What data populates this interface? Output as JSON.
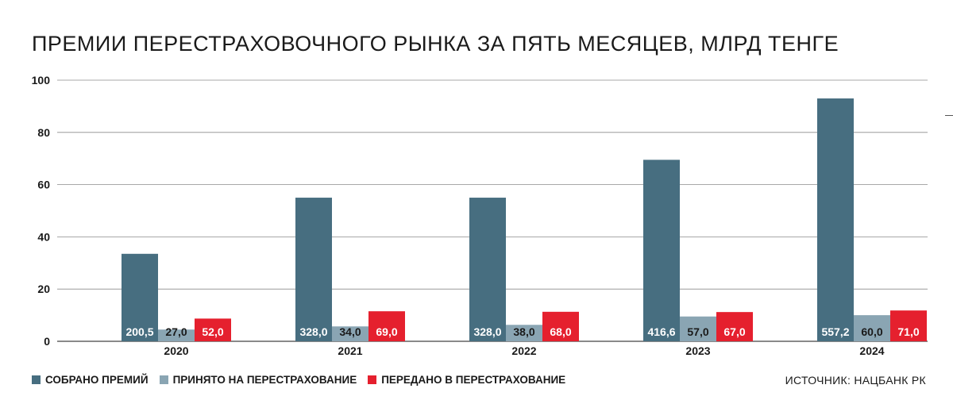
{
  "title": "ПРЕМИИ ПЕРЕСТРАХОВОЧНОГО РЫНКА ЗА ПЯТЬ МЕСЯЦЕВ, МЛРД ТЕНГЕ",
  "source": "ИСТОЧНИК: НАЦБАНК РК",
  "colors": {
    "collected": "#476e80",
    "accepted": "#8aa5b3",
    "ceded": "#e5202e"
  },
  "legend": [
    {
      "label": "СОБРАНО ПРЕМИЙ",
      "color": "#476e80"
    },
    {
      "label": "ПРИНЯТО НА ПЕРЕСТРАХОВАНИЕ",
      "color": "#8aa5b3"
    },
    {
      "label": "ПЕРЕДАНО В ПЕРЕСТРАХОВАНИЕ",
      "color": "#e5202e"
    }
  ],
  "chart_data": {
    "type": "bar",
    "title": "ПРЕМИИ ПЕРЕСТРАХОВОЧНОГО РЫНКА ЗА ПЯТЬ МЕСЯЦЕВ, МЛРД ТЕНГЕ",
    "categories": [
      "2020",
      "2021",
      "2022",
      "2023",
      "2024"
    ],
    "ylim": [
      0,
      100
    ],
    "yticks": [
      0,
      20,
      40,
      60,
      80,
      100
    ],
    "grid": true,
    "legend_position": "bottom-left",
    "series": [
      {
        "name": "СОБРАНО ПРЕМИЙ",
        "values": [
          33.5,
          55,
          55,
          69.5,
          93
        ],
        "labels": [
          "200,5",
          "328,0",
          "328,0",
          "416,6",
          "557,2"
        ],
        "color": "#476e80"
      },
      {
        "name": "ПРИНЯТО НА ПЕРЕСТРАХОВАНИЕ",
        "values": [
          4.5,
          5.7,
          6.3,
          9.5,
          10
        ],
        "labels": [
          "27,0",
          "34,0",
          "38,0",
          "57,0",
          "60,0"
        ],
        "color": "#8aa5b3"
      },
      {
        "name": "ПЕРЕДАНО В ПЕРЕСТРАХОВАНИЕ",
        "values": [
          8.7,
          11.5,
          11.3,
          11.2,
          11.8
        ],
        "labels": [
          "52,0",
          "69,0",
          "68,0",
          "67,0",
          "71,0"
        ],
        "color": "#e5202e"
      }
    ]
  }
}
